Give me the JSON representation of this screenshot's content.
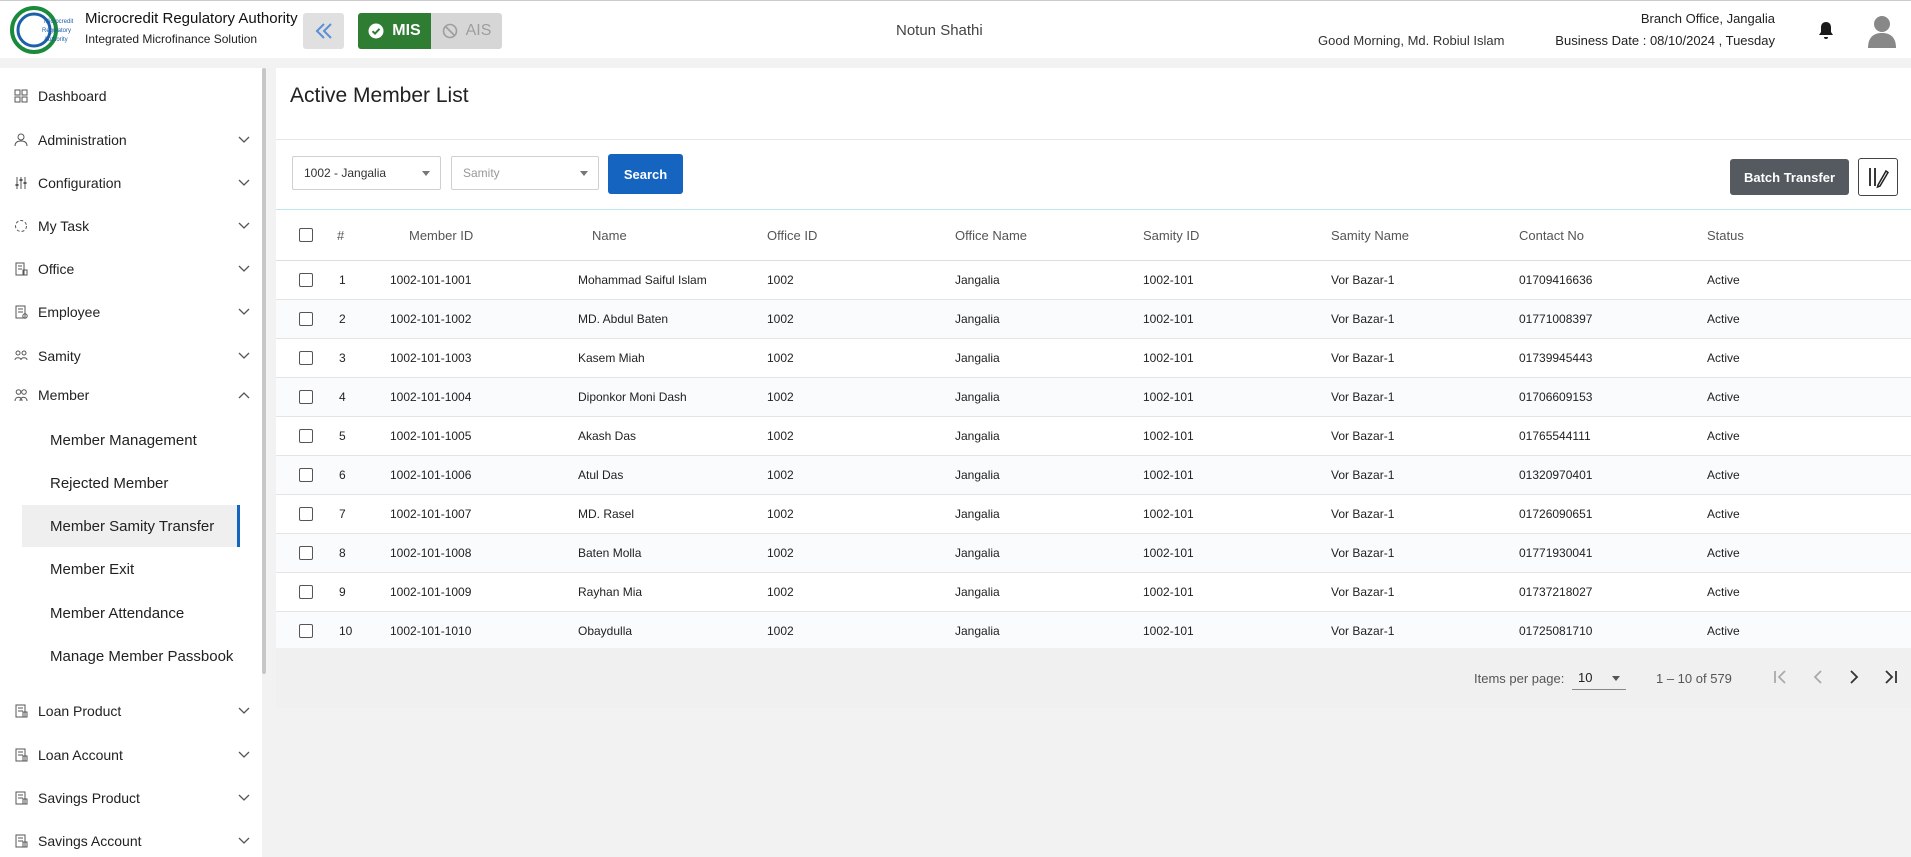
{
  "header": {
    "org_title": "Microcredit Regulatory Authority",
    "org_subtitle": "Integrated Microfinance Solution",
    "logo_text": "Microcredit Regulatory Authority",
    "mode_mis": "MIS",
    "mode_ais": "AIS",
    "app_name": "Notun Shathi",
    "greeting": "Good Morning, Md. Robiul Islam",
    "branch": "Branch Office, Jangalia",
    "business_date": "Business Date : 08/10/2024 , Tuesday"
  },
  "sidebar": {
    "items": [
      {
        "label": "Dashboard",
        "icon": "dashboard-icon"
      },
      {
        "label": "Administration",
        "icon": "admin-icon"
      },
      {
        "label": "Configuration",
        "icon": "config-icon"
      },
      {
        "label": "My Task",
        "icon": "task-icon"
      },
      {
        "label": "Office",
        "icon": "office-icon"
      },
      {
        "label": "Employee",
        "icon": "employee-icon"
      },
      {
        "label": "Samity",
        "icon": "samity-icon"
      },
      {
        "label": "Member",
        "icon": "member-icon"
      },
      {
        "label": "Loan Product",
        "icon": "loan-product-icon"
      },
      {
        "label": "Loan Account",
        "icon": "loan-account-icon"
      },
      {
        "label": "Savings Product",
        "icon": "savings-product-icon"
      },
      {
        "label": "Savings Account",
        "icon": "savings-account-icon"
      }
    ],
    "member_sub": [
      "Member Management",
      "Rejected Member",
      "Member Samity Transfer",
      "Member Exit",
      "Member Attendance",
      "Manage Member Passbook"
    ],
    "active_sub": "Member Samity Transfer"
  },
  "main": {
    "title": "Active Member List",
    "office_select": "1002 - Jangalia",
    "samity_placeholder": "Samity",
    "search_label": "Search",
    "batch_transfer_label": "Batch Transfer"
  },
  "table": {
    "headers": [
      "#",
      "Member ID",
      "Name",
      "Office ID",
      "Office Name",
      "Samity ID",
      "Samity Name",
      "Contact No",
      "Status"
    ],
    "rows": [
      [
        "1",
        "1002-101-1001",
        "Mohammad Saiful Islam",
        "1002",
        "Jangalia",
        "1002-101",
        "Vor Bazar-1",
        "01709416636",
        "Active"
      ],
      [
        "2",
        "1002-101-1002",
        "MD. Abdul Baten",
        "1002",
        "Jangalia",
        "1002-101",
        "Vor Bazar-1",
        "01771008397",
        "Active"
      ],
      [
        "3",
        "1002-101-1003",
        "Kasem Miah",
        "1002",
        "Jangalia",
        "1002-101",
        "Vor Bazar-1",
        "01739945443",
        "Active"
      ],
      [
        "4",
        "1002-101-1004",
        "Diponkor Moni Dash",
        "1002",
        "Jangalia",
        "1002-101",
        "Vor Bazar-1",
        "01706609153",
        "Active"
      ],
      [
        "5",
        "1002-101-1005",
        "Akash Das",
        "1002",
        "Jangalia",
        "1002-101",
        "Vor Bazar-1",
        "01765544111",
        "Active"
      ],
      [
        "6",
        "1002-101-1006",
        "Atul Das",
        "1002",
        "Jangalia",
        "1002-101",
        "Vor Bazar-1",
        "01320970401",
        "Active"
      ],
      [
        "7",
        "1002-101-1007",
        "MD. Rasel",
        "1002",
        "Jangalia",
        "1002-101",
        "Vor Bazar-1",
        "01726090651",
        "Active"
      ],
      [
        "8",
        "1002-101-1008",
        "Baten Molla",
        "1002",
        "Jangalia",
        "1002-101",
        "Vor Bazar-1",
        "01771930041",
        "Active"
      ],
      [
        "9",
        "1002-101-1009",
        "Rayhan Mia",
        "1002",
        "Jangalia",
        "1002-101",
        "Vor Bazar-1",
        "01737218027",
        "Active"
      ],
      [
        "10",
        "1002-101-1010",
        "Obaydulla",
        "1002",
        "Jangalia",
        "1002-101",
        "Vor Bazar-1",
        "01725081710",
        "Active"
      ]
    ]
  },
  "paginator": {
    "label": "Items per page:",
    "page_size": "10",
    "range": "1 – 10 of 579"
  },
  "colors": {
    "accent_blue": "#1565c0",
    "mis_green": "#2e7d32",
    "batch_gray": "#555a60"
  }
}
